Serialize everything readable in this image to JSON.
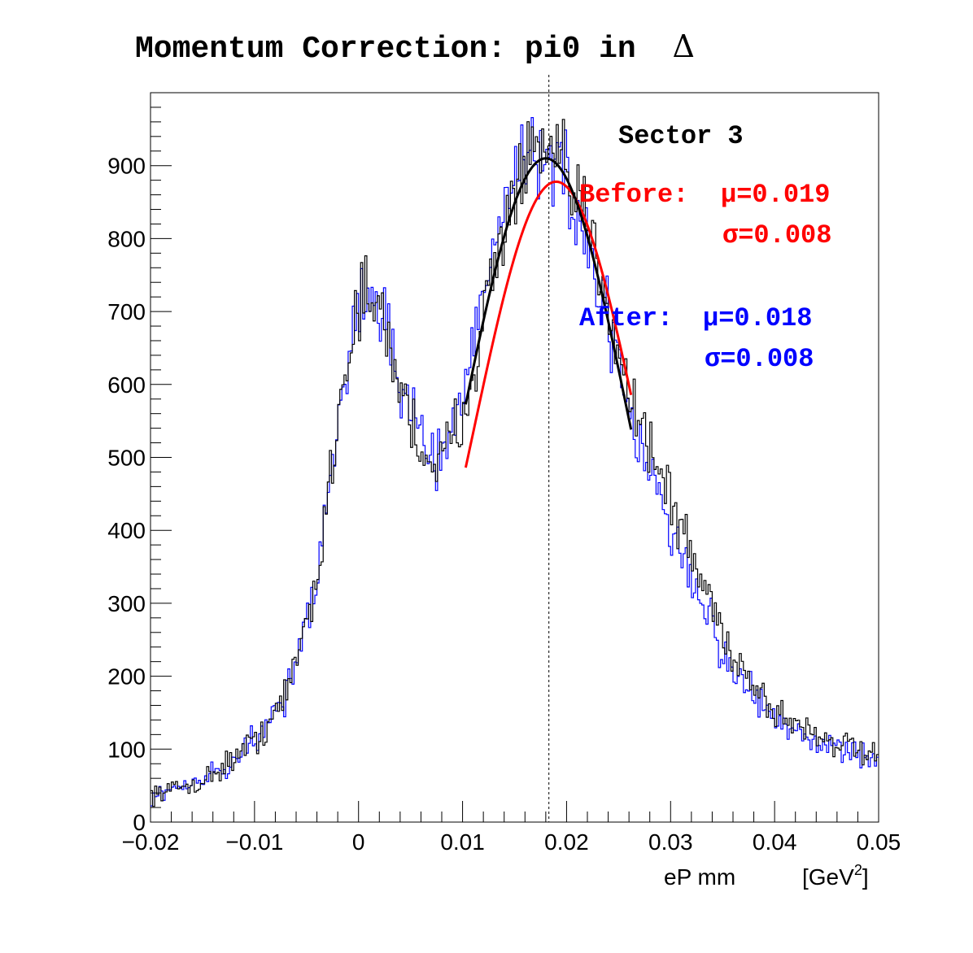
{
  "chart_data": {
    "type": "histogram",
    "title_text": "Momentum Correction: pi0 in",
    "title_symbol": "Δ",
    "xlabel": "eP mm",
    "xunit_base": "[GeV",
    "xunit_sup": "2",
    "xunit_close": "]",
    "xlim": [
      -0.02,
      0.05
    ],
    "ylim": [
      0,
      1000
    ],
    "x_ticks": [
      -0.02,
      -0.01,
      0,
      0.01,
      0.02,
      0.03,
      0.04,
      0.05
    ],
    "x_tick_labels": [
      "−0.02",
      "−0.01",
      "0",
      "0.01",
      "0.02",
      "0.03",
      "0.04",
      "0.05"
    ],
    "y_ticks": [
      0,
      100,
      200,
      300,
      400,
      500,
      600,
      700,
      800,
      900
    ],
    "y_tick_labels": [
      "0",
      "100",
      "200",
      "300",
      "400",
      "500",
      "600",
      "700",
      "800",
      "900"
    ],
    "dashed_line_x": 0.0183,
    "bin_width": 0.0002,
    "anchors_x": [
      -0.02,
      -0.015,
      -0.01,
      -0.007,
      -0.004,
      -0.002,
      0.0,
      0.002,
      0.004,
      0.006,
      0.008,
      0.01,
      0.012,
      0.014,
      0.016,
      0.018,
      0.02,
      0.022,
      0.024,
      0.026,
      0.028,
      0.03,
      0.033,
      0.036,
      0.04,
      0.045,
      0.05
    ],
    "series": [
      {
        "name": "Before",
        "color": "#000000",
        "anchors_y": [
          38,
          55,
          110,
          170,
          330,
          560,
          720,
          700,
          600,
          510,
          490,
          560,
          690,
          820,
          900,
          920,
          880,
          820,
          720,
          590,
          520,
          440,
          330,
          230,
          150,
          115,
          85
        ]
      },
      {
        "name": "After",
        "color": "#0000ff",
        "anchors_y": [
          38,
          55,
          110,
          170,
          330,
          560,
          720,
          700,
          600,
          530,
          510,
          580,
          720,
          850,
          920,
          930,
          870,
          780,
          680,
          570,
          480,
          400,
          300,
          210,
          140,
          105,
          80
        ]
      }
    ],
    "fits": [
      {
        "name": "Before fit",
        "color": "#ff0000",
        "mu": 0.019,
        "sigma": 0.008,
        "amplitude": 878,
        "x_range": [
          0.0103,
          0.0262
        ]
      },
      {
        "name": "After fit",
        "color": "#000000",
        "mu": 0.018,
        "sigma": 0.008,
        "amplitude": 910,
        "x_range": [
          0.0103,
          0.0262
        ]
      }
    ],
    "annotations": {
      "sector": "Sector 3",
      "before_label": "Before:",
      "before_mu": "μ=0.019",
      "before_sigma": "σ=0.008",
      "after_label": "After:",
      "after_mu": "μ=0.018",
      "after_sigma": "σ=0.008",
      "before_color": "#ff0000",
      "after_color": "#0000ff"
    }
  }
}
